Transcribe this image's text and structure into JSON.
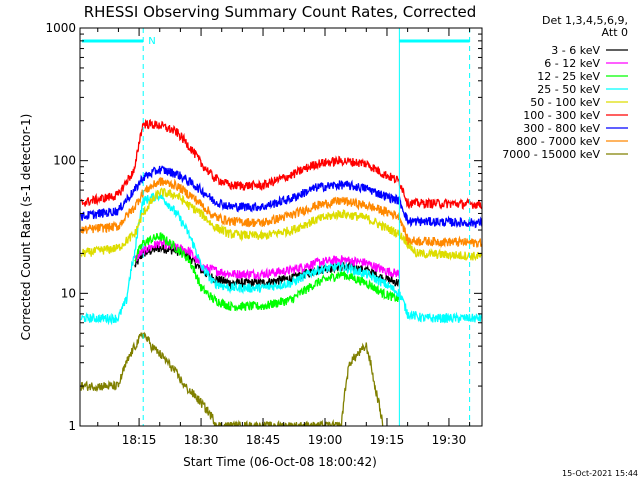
{
  "chart_data": {
    "type": "line",
    "title": "RHESSI Observing Summary Count Rates, Corrected",
    "xlabel": "Start Time (06-Oct-08 18:00:42)",
    "ylabel": "Corrected Count Rate (s-1 detector-1)",
    "y_scale": "log",
    "ylim": [
      1,
      1000
    ],
    "xlim": [
      "18:00:42",
      "19:38:00"
    ],
    "x_ticks": [
      "18:15",
      "18:30",
      "18:45",
      "19:00",
      "19:15",
      "19:30"
    ],
    "y_ticks": [
      "1",
      "10",
      "100",
      "1000"
    ],
    "legend_header": [
      "Det 1,3,4,5,6,9,",
      "Att 0"
    ],
    "legend_position": "right",
    "timestamp": "15-Oct-2021 15:44",
    "annotations": [
      "N"
    ],
    "series": [
      {
        "name": "3 - 6 keV",
        "color": "#000000",
        "x": [
          "18:14",
          "18:16",
          "18:20",
          "18:24",
          "18:27",
          "18:30",
          "18:33",
          "18:37",
          "18:45",
          "18:52",
          "18:58",
          "19:04",
          "19:10",
          "19:14",
          "19:18"
        ],
        "values": [
          16,
          20,
          22,
          21,
          19,
          15,
          13,
          12,
          12,
          13,
          15,
          16,
          15,
          13,
          12
        ]
      },
      {
        "name": "6 - 12 keV",
        "color": "#ff00ff",
        "x": [
          "18:14",
          "18:16",
          "18:20",
          "18:24",
          "18:27",
          "18:30",
          "18:33",
          "18:37",
          "18:45",
          "18:52",
          "18:58",
          "19:04",
          "19:10",
          "19:14",
          "19:18"
        ],
        "values": [
          18,
          21,
          24,
          22,
          21,
          16,
          15,
          14,
          14,
          15,
          17,
          18,
          17,
          15,
          14
        ]
      },
      {
        "name": "12 - 25 keV",
        "color": "#00ff00",
        "x": [
          "18:14",
          "18:16",
          "18:20",
          "18:24",
          "18:27",
          "18:30",
          "18:33",
          "18:37",
          "18:45",
          "18:52",
          "18:58",
          "19:04",
          "19:10",
          "19:14",
          "19:18"
        ],
        "values": [
          18,
          24,
          27,
          22,
          18,
          11,
          9,
          8,
          8,
          9,
          12,
          14,
          12,
          10,
          9
        ]
      },
      {
        "name": "25 - 50 keV",
        "color": "#00ffff",
        "x": [
          "18:01",
          "18:10",
          "18:12",
          "18:14",
          "18:16",
          "18:20",
          "18:24",
          "18:27",
          "18:30",
          "18:33",
          "18:37",
          "18:45",
          "18:52",
          "18:58",
          "19:04",
          "19:10",
          "19:14",
          "19:18",
          "19:20",
          "19:24",
          "19:38"
        ],
        "values": [
          6.5,
          6.5,
          9,
          20,
          50,
          55,
          40,
          28,
          16,
          12,
          11,
          11,
          12,
          15,
          16,
          14,
          12,
          10,
          7,
          6.5,
          6.5
        ]
      },
      {
        "name": "50 - 100 keV",
        "color": "#dddd00",
        "x": [
          "18:01",
          "18:10",
          "18:14",
          "18:16",
          "18:20",
          "18:24",
          "18:27",
          "18:30",
          "18:33",
          "18:37",
          "18:45",
          "18:52",
          "18:58",
          "19:04",
          "19:10",
          "19:14",
          "19:18",
          "19:22",
          "19:38"
        ],
        "values": [
          20,
          22,
          28,
          40,
          58,
          55,
          46,
          40,
          32,
          28,
          27,
          30,
          36,
          40,
          37,
          32,
          28,
          20,
          19
        ]
      },
      {
        "name": "100 - 300 keV",
        "color": "#ff0000",
        "x": [
          "18:01",
          "18:10",
          "18:14",
          "18:16",
          "18:20",
          "18:24",
          "18:27",
          "18:30",
          "18:33",
          "18:37",
          "18:45",
          "18:52",
          "18:58",
          "19:04",
          "19:10",
          "19:14",
          "19:18",
          "19:20",
          "19:38"
        ],
        "values": [
          48,
          55,
          85,
          190,
          185,
          165,
          130,
          95,
          75,
          65,
          65,
          78,
          95,
          100,
          95,
          80,
          70,
          48,
          47
        ]
      },
      {
        "name": "300 - 800 keV",
        "color": "#0000ff",
        "x": [
          "18:01",
          "18:10",
          "18:14",
          "18:16",
          "18:20",
          "18:24",
          "18:27",
          "18:30",
          "18:33",
          "18:37",
          "18:45",
          "18:52",
          "18:58",
          "19:04",
          "19:10",
          "19:14",
          "19:18",
          "19:20",
          "19:38"
        ],
        "values": [
          38,
          42,
          60,
          75,
          86,
          80,
          70,
          60,
          50,
          45,
          45,
          52,
          63,
          66,
          62,
          55,
          50,
          35,
          34
        ]
      },
      {
        "name": "800 - 7000 keV",
        "color": "#ff8800",
        "x": [
          "18:01",
          "18:10",
          "18:14",
          "18:16",
          "18:20",
          "18:24",
          "18:27",
          "18:30",
          "18:33",
          "18:37",
          "18:45",
          "18:52",
          "18:58",
          "19:04",
          "19:10",
          "19:14",
          "19:18",
          "19:20",
          "19:38"
        ],
        "values": [
          30,
          32,
          45,
          58,
          70,
          65,
          56,
          47,
          38,
          35,
          34,
          39,
          46,
          50,
          46,
          42,
          38,
          25,
          24
        ]
      },
      {
        "name": "7000 - 15000 keV",
        "color": "#808000",
        "x": [
          "18:01",
          "18:10",
          "18:12",
          "18:14",
          "18:16",
          "18:18",
          "18:22",
          "18:26",
          "18:30",
          "18:34",
          "19:04",
          "19:06",
          "19:10",
          "19:12",
          "19:14"
        ],
        "values": [
          2,
          2,
          3,
          4,
          5,
          4,
          3,
          2,
          1.5,
          1,
          1,
          3,
          4,
          2,
          1
        ]
      }
    ]
  }
}
